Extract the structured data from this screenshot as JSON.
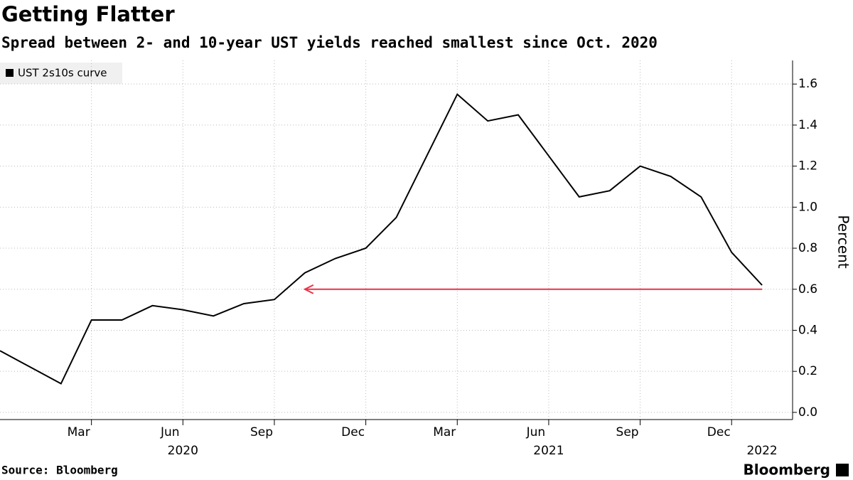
{
  "chart_data": {
    "type": "line",
    "title": "Getting Flatter",
    "subtitle": "Spread between 2- and 10-year UST yields reached smallest since Oct. 2020",
    "y_label": "Percent",
    "source": "Source: Bloomberg",
    "brand": "Bloomberg",
    "x": [
      "2019-12",
      "2020-01",
      "2020-02",
      "2020-03",
      "2020-04",
      "2020-05",
      "2020-06",
      "2020-07",
      "2020-08",
      "2020-09",
      "2020-10",
      "2020-11",
      "2020-12",
      "2021-01",
      "2021-02",
      "2021-03",
      "2021-04",
      "2021-05",
      "2021-06",
      "2021-07",
      "2021-08",
      "2021-09",
      "2021-10",
      "2021-11",
      "2021-12",
      "2022-01"
    ],
    "series": [
      {
        "name": "UST 2s10s curve",
        "color": "#000000",
        "values": [
          0.3,
          0.22,
          0.14,
          0.45,
          0.45,
          0.52,
          0.5,
          0.47,
          0.53,
          0.55,
          0.68,
          0.75,
          0.8,
          0.95,
          1.25,
          1.55,
          1.42,
          1.45,
          1.25,
          1.05,
          1.08,
          1.2,
          1.15,
          1.05,
          0.78,
          0.62
        ]
      }
    ],
    "arrow": {
      "y": 0.6,
      "from": "2022-01",
      "to": "2020-10",
      "color": "#e8344a"
    },
    "xlim": [
      "2019-12",
      "2022-02"
    ],
    "xticks": [
      {
        "value": "2020-03",
        "label": "Mar"
      },
      {
        "value": "2020-06",
        "label": "Jun"
      },
      {
        "value": "2020-09",
        "label": "Sep"
      },
      {
        "value": "2020-12",
        "label": "Dec"
      },
      {
        "value": "2021-03",
        "label": "Mar"
      },
      {
        "value": "2021-06",
        "label": "Jun"
      },
      {
        "value": "2021-09",
        "label": "Sep"
      },
      {
        "value": "2021-12",
        "label": "Dec"
      }
    ],
    "year_labels": [
      {
        "value": "2020-06",
        "label": "2020"
      },
      {
        "value": "2021-06",
        "label": "2021"
      },
      {
        "value": "2022-01",
        "label": "2022"
      }
    ],
    "ylim": [
      -0.035,
      1.715
    ],
    "yticks": [
      {
        "value": 0,
        "label": "0.0"
      },
      0.2,
      0.4,
      0.6,
      0.8,
      {
        "value": 1,
        "label": "1.0"
      },
      1.2,
      1.4,
      1.6
    ],
    "grid": true
  }
}
